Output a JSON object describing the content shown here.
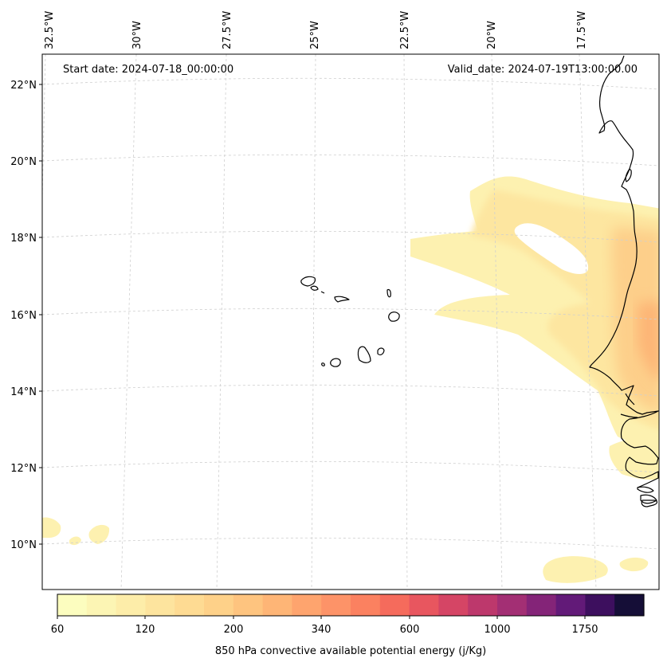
{
  "header": {
    "start_date": "Start date: 2024-07-18_00:00:00",
    "valid_date": "Valid_date: 2024-07-19T13:00:00.00"
  },
  "axes": {
    "lon_labels": [
      "32.5°W",
      "30°W",
      "27.5°W",
      "25°W",
      "22.5°W",
      "20°W",
      "17.5°W"
    ],
    "lat_labels": [
      "22°N",
      "20°N",
      "18°N",
      "16°N",
      "14°N",
      "12°N",
      "10°N"
    ]
  },
  "colorbar": {
    "ticks": [
      "60",
      "120",
      "200",
      "340",
      "600",
      "1000",
      "1750"
    ],
    "label": "850 hPa convective available potential energy (j/Kg)",
    "colors": [
      "#fcfdbf",
      "#fcf5b4",
      "#fdeda9",
      "#fde49e",
      "#fedb93",
      "#fed189",
      "#fec47f",
      "#feb576",
      "#fea46e",
      "#fd9368",
      "#fb8160",
      "#f56b5c",
      "#e8565f",
      "#d54565",
      "#bd386c",
      "#a32f74",
      "#842478",
      "#621a78",
      "#3d0f5e",
      "#150e37"
    ]
  },
  "colors": {
    "coast": "#000000",
    "grid": "#cfcfcf",
    "frame": "#000000"
  }
}
